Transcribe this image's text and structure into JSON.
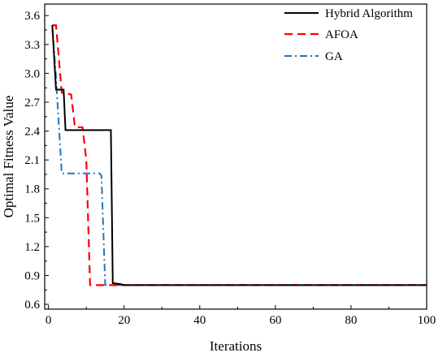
{
  "chart_data": {
    "type": "line",
    "title": "",
    "xlabel": "Iterations",
    "ylabel": "Optimal Fitness Value",
    "xlim": [
      -1,
      100
    ],
    "ylim": [
      0.55,
      3.72
    ],
    "xticks": [
      0,
      20,
      40,
      60,
      80,
      100
    ],
    "yticks": [
      0.6,
      0.9,
      1.2,
      1.5,
      1.8,
      2.1,
      2.4,
      2.7,
      3.0,
      3.3,
      3.6
    ],
    "xtick_labels": [
      "0",
      "20",
      "40",
      "60",
      "80",
      "100"
    ],
    "ytick_labels": [
      "0.6",
      "0.9",
      "1.2",
      "1.5",
      "1.8",
      "2.1",
      "2.4",
      "2.7",
      "3.0",
      "3.3",
      "3.6"
    ],
    "grid": false,
    "legend_position": "top-right",
    "series": [
      {
        "name": "Hybrid Algorithm",
        "color": "#000000",
        "dash": "solid",
        "points": [
          [
            1,
            3.5
          ],
          [
            2,
            2.83
          ],
          [
            4,
            2.83
          ],
          [
            4.5,
            2.41
          ],
          [
            16.5,
            2.41
          ],
          [
            17,
            0.82
          ],
          [
            19,
            0.81
          ],
          [
            20,
            0.8
          ],
          [
            100,
            0.8
          ]
        ]
      },
      {
        "name": "AFOA",
        "color": "#ff0000",
        "dash": "dashed",
        "points": [
          [
            1,
            3.5
          ],
          [
            2,
            3.5
          ],
          [
            3.5,
            2.8
          ],
          [
            6,
            2.78
          ],
          [
            7,
            2.44
          ],
          [
            9,
            2.44
          ],
          [
            10,
            2.1
          ],
          [
            11,
            0.8
          ],
          [
            100,
            0.8
          ]
        ]
      },
      {
        "name": "GA",
        "color": "#1f77c4",
        "dash": "dashdot",
        "points": [
          [
            1,
            3.5
          ],
          [
            2,
            2.95
          ],
          [
            3.5,
            1.96
          ],
          [
            13.5,
            1.96
          ],
          [
            14,
            1.94
          ],
          [
            15,
            0.8
          ],
          [
            100,
            0.8
          ]
        ]
      }
    ]
  }
}
